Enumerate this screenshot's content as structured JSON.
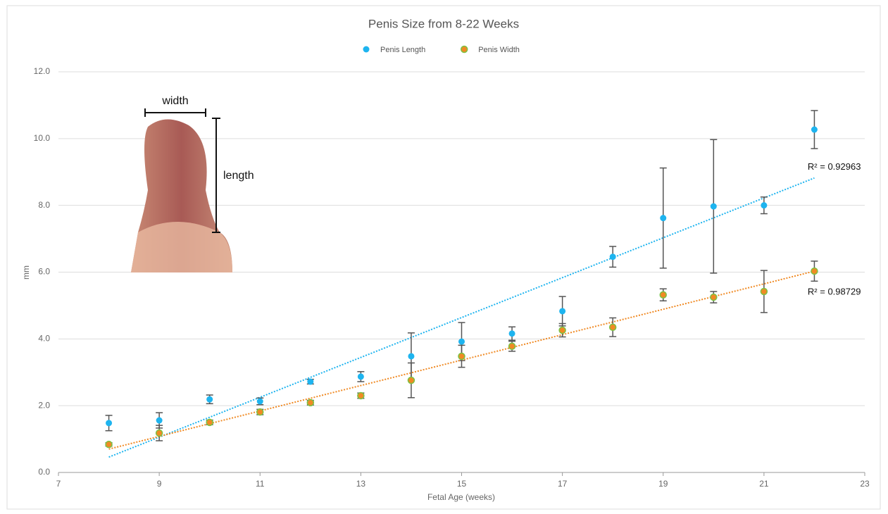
{
  "chart_data": {
    "type": "scatter",
    "title": "Penis Size from 8-22 Weeks",
    "x_label": "Fetal Age (weeks)",
    "y_label": "mm",
    "x": [
      8,
      9,
      10,
      11,
      12,
      13,
      14,
      15,
      16,
      17,
      18,
      19,
      20,
      21,
      22
    ],
    "series": [
      {
        "name": "Penis Length",
        "color": "#1eb4ef",
        "values": [
          1.48,
          1.56,
          2.19,
          2.13,
          2.72,
          2.87,
          3.48,
          3.92,
          4.16,
          4.83,
          6.46,
          7.62,
          7.97,
          8.0,
          10.27
        ],
        "errors": [
          0.23,
          0.23,
          0.13,
          0.1,
          0.07,
          0.15,
          0.7,
          0.57,
          0.2,
          0.44,
          0.31,
          1.5,
          2.0,
          0.25,
          0.57
        ],
        "trendline": {
          "color": "#1eb4ef",
          "x": [
            8,
            22
          ],
          "values": [
            0.46,
            8.82
          ],
          "label": "R² = 0.92963"
        }
      },
      {
        "name": "Penis Width",
        "color": "#f08a24",
        "edge_color": "#7cc243",
        "values": [
          0.84,
          1.18,
          1.5,
          1.81,
          2.09,
          2.3,
          2.76,
          3.48,
          3.78,
          4.26,
          4.35,
          5.32,
          5.25,
          5.42,
          6.03
        ],
        "errors": [
          0.05,
          0.23,
          0.07,
          0.08,
          0.07,
          0.08,
          0.52,
          0.33,
          0.15,
          0.2,
          0.28,
          0.18,
          0.17,
          0.63,
          0.3
        ],
        "trendline": {
          "color": "#f08a24",
          "x": [
            8,
            22
          ],
          "values": [
            0.7,
            6.03
          ],
          "label": "R² = 0.98729"
        }
      }
    ],
    "xlim": [
      7,
      23
    ],
    "xticks": [
      7,
      9,
      11,
      13,
      15,
      17,
      19,
      21,
      23
    ],
    "ylim": [
      0,
      12
    ],
    "yticks": [
      {
        "value": 0,
        "label": "0.0"
      },
      {
        "value": 2,
        "label": "2.0"
      },
      {
        "value": 4,
        "label": "4.0"
      },
      {
        "value": 6,
        "label": "6.0"
      },
      {
        "value": 8,
        "label": "8.0"
      },
      {
        "value": 10,
        "label": "10.0"
      },
      {
        "value": 12,
        "label": "12.0"
      }
    ],
    "grid": true,
    "legend": "top",
    "inset": {
      "width_label": "width",
      "length_label": "length"
    }
  }
}
